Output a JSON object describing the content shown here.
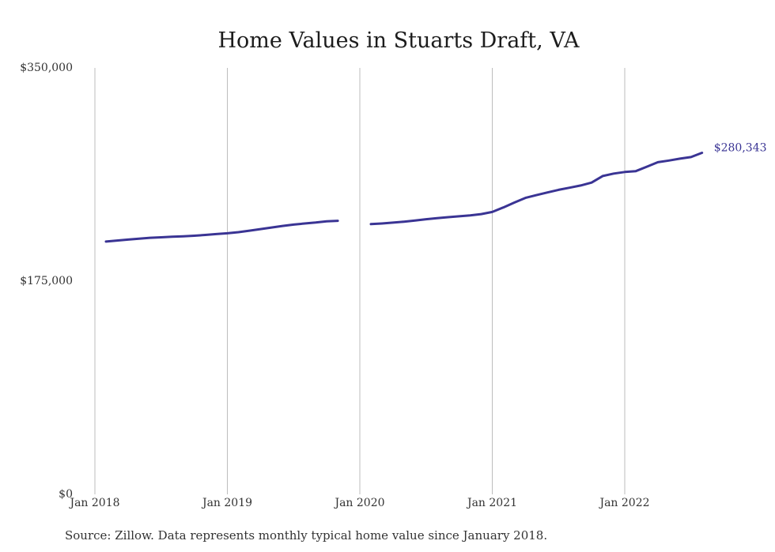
{
  "chart_data": {
    "type": "line",
    "title": "Home Values in Stuarts Draft, VA",
    "xlabel": "",
    "ylabel": "",
    "ylim": [
      0,
      350000
    ],
    "y_ticks": [
      {
        "value": 0,
        "label": "$0"
      },
      {
        "value": 175000,
        "label": "$175,000"
      },
      {
        "value": 350000,
        "label": "$350,000"
      }
    ],
    "x_ticks": [
      {
        "value": "2018-01",
        "label": "Jan 2018"
      },
      {
        "value": "2019-01",
        "label": "Jan 2019"
      },
      {
        "value": "2020-01",
        "label": "Jan 2020"
      },
      {
        "value": "2021-01",
        "label": "Jan 2021"
      },
      {
        "value": "2022-01",
        "label": "Jan 2022"
      }
    ],
    "grid": "vertical",
    "legend": "none",
    "series": [
      {
        "color": "#3a3494",
        "end_label": "$280,343",
        "points": [
          {
            "x": "2018-02",
            "y": 207500
          },
          {
            "x": "2018-03",
            "y": 208300
          },
          {
            "x": "2018-04",
            "y": 209100
          },
          {
            "x": "2018-05",
            "y": 209900
          },
          {
            "x": "2018-06",
            "y": 210600
          },
          {
            "x": "2018-07",
            "y": 211000
          },
          {
            "x": "2018-08",
            "y": 211400
          },
          {
            "x": "2018-09",
            "y": 211800
          },
          {
            "x": "2018-10",
            "y": 212300
          },
          {
            "x": "2018-11",
            "y": 212900
          },
          {
            "x": "2018-12",
            "y": 213600
          },
          {
            "x": "2019-01",
            "y": 214300
          },
          {
            "x": "2019-02",
            "y": 215200
          },
          {
            "x": "2019-03",
            "y": 216400
          },
          {
            "x": "2019-04",
            "y": 217700
          },
          {
            "x": "2019-05",
            "y": 219000
          },
          {
            "x": "2019-06",
            "y": 220300
          },
          {
            "x": "2019-07",
            "y": 221400
          },
          {
            "x": "2019-08",
            "y": 222300
          },
          {
            "x": "2019-09",
            "y": 223100
          },
          {
            "x": "2019-10",
            "y": 224100
          },
          {
            "x": "2019-11",
            "y": 224500
          },
          {
            "x": "2020-01",
            "y": null
          },
          {
            "x": "2020-02",
            "y": 221800
          },
          {
            "x": "2020-03",
            "y": 222300
          },
          {
            "x": "2020-04",
            "y": 223000
          },
          {
            "x": "2020-05",
            "y": 223800
          },
          {
            "x": "2020-06",
            "y": 224800
          },
          {
            "x": "2020-07",
            "y": 225800
          },
          {
            "x": "2020-08",
            "y": 226700
          },
          {
            "x": "2020-09",
            "y": 227500
          },
          {
            "x": "2020-10",
            "y": 228200
          },
          {
            "x": "2020-11",
            "y": 228900
          },
          {
            "x": "2020-12",
            "y": 230000
          },
          {
            "x": "2021-01",
            "y": 231800
          },
          {
            "x": "2021-02",
            "y": 235500
          },
          {
            "x": "2021-03",
            "y": 239500
          },
          {
            "x": "2021-04",
            "y": 243300
          },
          {
            "x": "2021-05",
            "y": 245600
          },
          {
            "x": "2021-06",
            "y": 247800
          },
          {
            "x": "2021-07",
            "y": 249900
          },
          {
            "x": "2021-08",
            "y": 251700
          },
          {
            "x": "2021-09",
            "y": 253500
          },
          {
            "x": "2021-10",
            "y": 255900
          },
          {
            "x": "2021-11",
            "y": 261300
          },
          {
            "x": "2021-12",
            "y": 263300
          },
          {
            "x": "2022-01",
            "y": 264600
          },
          {
            "x": "2022-02",
            "y": 265300
          },
          {
            "x": "2022-03",
            "y": 268900
          },
          {
            "x": "2022-04",
            "y": 272600
          },
          {
            "x": "2022-05",
            "y": 274000
          },
          {
            "x": "2022-06",
            "y": 275500
          },
          {
            "x": "2022-07",
            "y": 276800
          },
          {
            "x": "2022-08",
            "y": 280343
          }
        ]
      }
    ],
    "note": "Source: Zillow. Data represents monthly typical home value since January 2018."
  }
}
